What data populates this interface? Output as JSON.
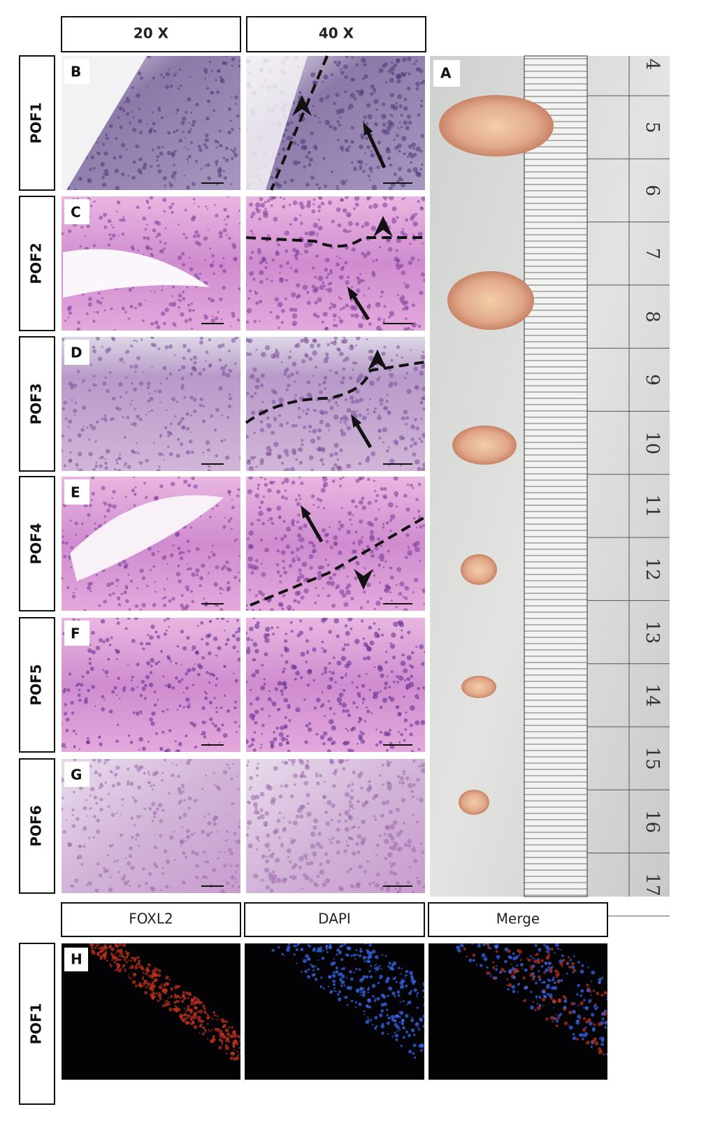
{
  "column_headers": [
    "20 X",
    "40 X"
  ],
  "rows": [
    {
      "label": "POF1",
      "letter": "B"
    },
    {
      "label": "POF2",
      "letter": "C"
    },
    {
      "label": "POF3",
      "letter": "D"
    },
    {
      "label": "POF4",
      "letter": "E"
    },
    {
      "label": "POF5",
      "letter": "F"
    },
    {
      "label": "POF6",
      "letter": "G"
    }
  ],
  "panel_a": {
    "letter": "A",
    "ruler_labels": [
      "4",
      "5",
      "6",
      "7",
      "8",
      "9",
      "10",
      "11",
      "12",
      "13",
      "14",
      "15",
      "16",
      "17"
    ]
  },
  "fluorescence": {
    "letter": "H",
    "row_label": "POF1",
    "headers": [
      "FOXL2",
      "DAPI",
      "Merge"
    ]
  }
}
